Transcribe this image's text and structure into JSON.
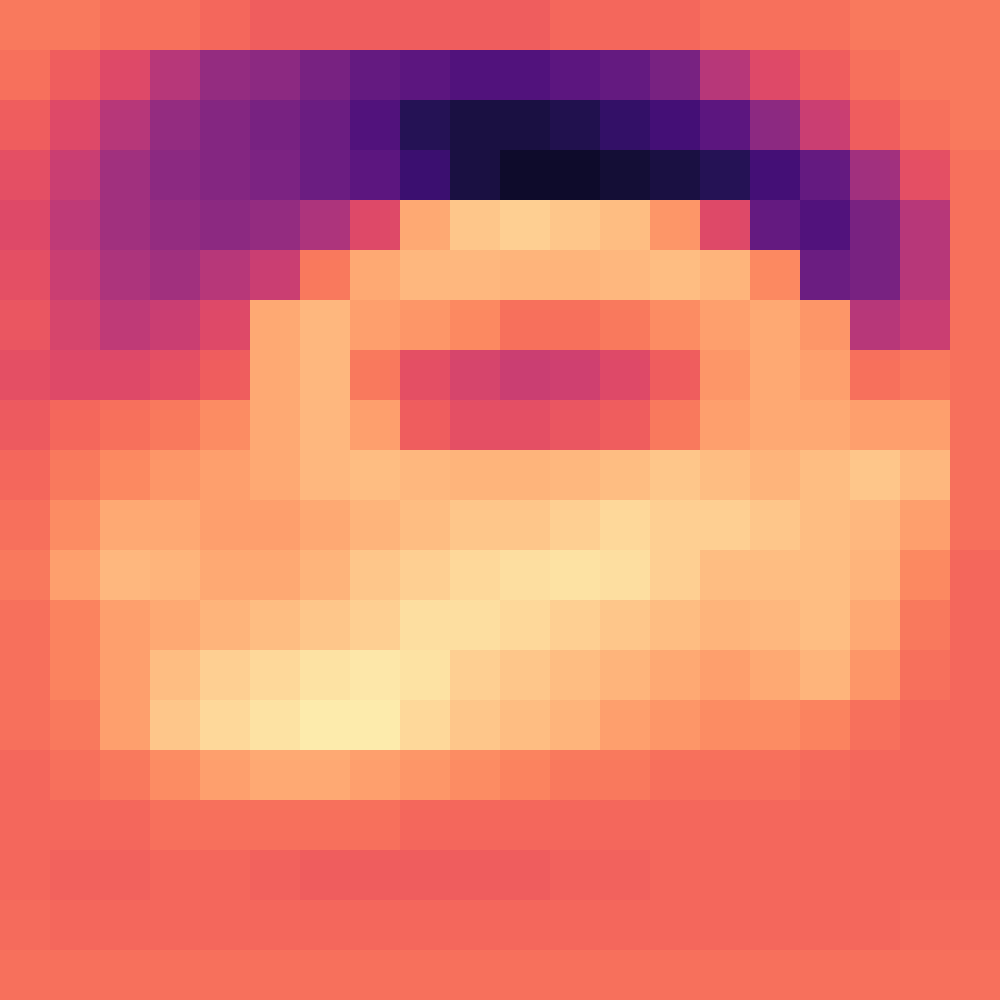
{
  "chart_data": {
    "type": "heatmap",
    "tick_labels": false,
    "color": "magma",
    "zlim": [
      0,
      1
    ],
    "cells": [
      [
        0.72,
        0.72,
        0.7,
        0.7,
        0.68,
        0.66,
        0.66,
        0.66,
        0.66,
        0.66,
        0.66,
        0.68,
        0.68,
        0.68,
        0.7,
        0.7,
        0.7,
        0.72,
        0.72,
        0.72
      ],
      [
        0.7,
        0.66,
        0.6,
        0.5,
        0.42,
        0.4,
        0.35,
        0.3,
        0.28,
        0.25,
        0.25,
        0.28,
        0.3,
        0.35,
        0.5,
        0.6,
        0.66,
        0.7,
        0.72,
        0.72
      ],
      [
        0.66,
        0.6,
        0.5,
        0.42,
        0.38,
        0.35,
        0.32,
        0.25,
        0.15,
        0.12,
        0.12,
        0.14,
        0.18,
        0.22,
        0.28,
        0.4,
        0.55,
        0.66,
        0.7,
        0.72
      ],
      [
        0.62,
        0.55,
        0.45,
        0.4,
        0.38,
        0.36,
        0.32,
        0.28,
        0.2,
        0.12,
        0.08,
        0.08,
        0.1,
        0.12,
        0.15,
        0.22,
        0.3,
        0.45,
        0.62,
        0.7
      ],
      [
        0.6,
        0.52,
        0.45,
        0.42,
        0.4,
        0.42,
        0.48,
        0.6,
        0.82,
        0.88,
        0.9,
        0.88,
        0.86,
        0.78,
        0.6,
        0.3,
        0.25,
        0.35,
        0.5,
        0.7
      ],
      [
        0.62,
        0.55,
        0.48,
        0.45,
        0.5,
        0.55,
        0.72,
        0.82,
        0.85,
        0.85,
        0.84,
        0.84,
        0.85,
        0.86,
        0.84,
        0.75,
        0.32,
        0.35,
        0.5,
        0.7
      ],
      [
        0.64,
        0.58,
        0.52,
        0.55,
        0.6,
        0.82,
        0.85,
        0.8,
        0.78,
        0.75,
        0.7,
        0.7,
        0.72,
        0.76,
        0.8,
        0.82,
        0.78,
        0.5,
        0.55,
        0.7
      ],
      [
        0.62,
        0.6,
        0.6,
        0.62,
        0.66,
        0.82,
        0.85,
        0.72,
        0.62,
        0.58,
        0.55,
        0.56,
        0.6,
        0.66,
        0.78,
        0.82,
        0.8,
        0.7,
        0.72,
        0.7
      ],
      [
        0.65,
        0.68,
        0.7,
        0.72,
        0.76,
        0.82,
        0.85,
        0.8,
        0.66,
        0.62,
        0.62,
        0.64,
        0.66,
        0.72,
        0.8,
        0.82,
        0.82,
        0.8,
        0.8,
        0.7
      ],
      [
        0.68,
        0.72,
        0.75,
        0.78,
        0.8,
        0.82,
        0.85,
        0.86,
        0.85,
        0.84,
        0.84,
        0.85,
        0.86,
        0.88,
        0.86,
        0.84,
        0.86,
        0.88,
        0.85,
        0.7
      ],
      [
        0.7,
        0.76,
        0.82,
        0.82,
        0.8,
        0.8,
        0.82,
        0.84,
        0.86,
        0.88,
        0.88,
        0.9,
        0.92,
        0.9,
        0.9,
        0.88,
        0.86,
        0.85,
        0.8,
        0.7
      ],
      [
        0.72,
        0.8,
        0.85,
        0.84,
        0.82,
        0.82,
        0.84,
        0.88,
        0.9,
        0.92,
        0.93,
        0.94,
        0.93,
        0.9,
        0.86,
        0.86,
        0.86,
        0.84,
        0.75,
        0.68
      ],
      [
        0.7,
        0.74,
        0.8,
        0.82,
        0.84,
        0.86,
        0.88,
        0.9,
        0.93,
        0.93,
        0.92,
        0.9,
        0.88,
        0.86,
        0.84,
        0.85,
        0.86,
        0.82,
        0.72,
        0.68
      ],
      [
        0.7,
        0.74,
        0.8,
        0.86,
        0.9,
        0.92,
        0.94,
        0.95,
        0.94,
        0.9,
        0.88,
        0.86,
        0.84,
        0.82,
        0.8,
        0.82,
        0.84,
        0.78,
        0.7,
        0.68
      ],
      [
        0.7,
        0.72,
        0.8,
        0.88,
        0.92,
        0.94,
        0.96,
        0.96,
        0.92,
        0.88,
        0.86,
        0.84,
        0.8,
        0.78,
        0.76,
        0.76,
        0.74,
        0.7,
        0.68,
        0.68
      ],
      [
        0.68,
        0.7,
        0.72,
        0.76,
        0.8,
        0.82,
        0.82,
        0.8,
        0.78,
        0.76,
        0.74,
        0.72,
        0.72,
        0.7,
        0.7,
        0.7,
        0.69,
        0.68,
        0.68,
        0.68
      ],
      [
        0.68,
        0.68,
        0.68,
        0.7,
        0.7,
        0.7,
        0.7,
        0.7,
        0.68,
        0.68,
        0.68,
        0.68,
        0.68,
        0.68,
        0.68,
        0.68,
        0.68,
        0.68,
        0.68,
        0.68
      ],
      [
        0.68,
        0.67,
        0.67,
        0.68,
        0.68,
        0.67,
        0.66,
        0.66,
        0.66,
        0.66,
        0.66,
        0.67,
        0.67,
        0.68,
        0.68,
        0.68,
        0.68,
        0.68,
        0.68,
        0.68
      ],
      [
        0.69,
        0.68,
        0.68,
        0.68,
        0.68,
        0.68,
        0.68,
        0.68,
        0.68,
        0.68,
        0.68,
        0.68,
        0.68,
        0.68,
        0.68,
        0.68,
        0.68,
        0.68,
        0.69,
        0.69
      ],
      [
        0.7,
        0.7,
        0.7,
        0.7,
        0.7,
        0.7,
        0.7,
        0.7,
        0.7,
        0.7,
        0.7,
        0.7,
        0.7,
        0.7,
        0.7,
        0.7,
        0.7,
        0.7,
        0.7,
        0.7
      ]
    ]
  }
}
